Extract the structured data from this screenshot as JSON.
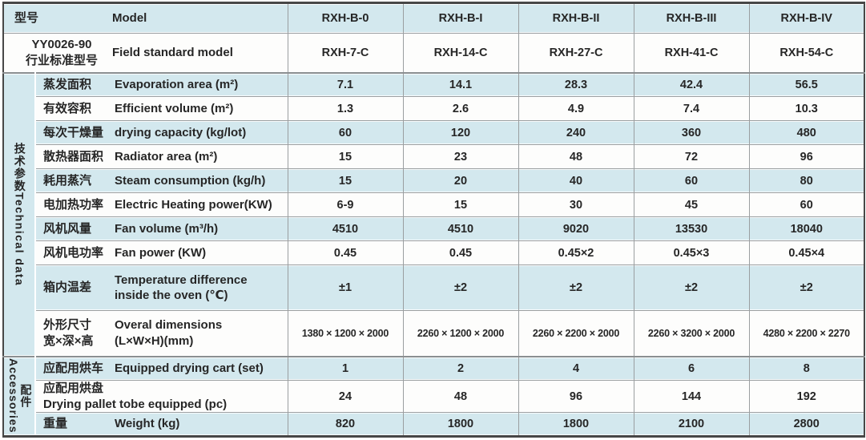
{
  "header": {
    "model_row": {
      "zh": "型号",
      "en": "Model",
      "values": [
        "RXH-B-0",
        "RXH-B-I",
        "RXH-B-II",
        "RXH-B-III",
        "RXH-B-IV"
      ]
    },
    "standard_row": {
      "zh": "YY0026-90\n行业标准型号",
      "en": "Field standard model",
      "values": [
        "RXH-7-C",
        "RXH-14-C",
        "RXH-27-C",
        "RXH-41-C",
        "RXH-54-C"
      ]
    }
  },
  "sections": [
    {
      "group": {
        "zh": "技术参数",
        "en": "Technical data"
      },
      "rows": [
        {
          "zh": "蒸发面积",
          "en": "Evaporation area (m²)",
          "values": [
            "7.1",
            "14.1",
            "28.3",
            "42.4",
            "56.5"
          ]
        },
        {
          "zh": "有效容积",
          "en": "Efficient volume (m²)",
          "values": [
            "1.3",
            "2.6",
            "4.9",
            "7.4",
            "10.3"
          ]
        },
        {
          "zh": "每次干燥量",
          "en": "drying capacity (kg/lot)",
          "values": [
            "60",
            "120",
            "240",
            "360",
            "480"
          ]
        },
        {
          "zh": "散热器面积",
          "en": "Radiator area (m²)",
          "values": [
            "15",
            "23",
            "48",
            "72",
            "96"
          ]
        },
        {
          "zh": "耗用蒸汽",
          "en": "Steam consumption (kg/h)",
          "values": [
            "15",
            "20",
            "40",
            "60",
            "80"
          ]
        },
        {
          "zh": "电加热功率",
          "en": "Electric Heating power(KW)",
          "values": [
            "6-9",
            "15",
            "30",
            "45",
            "60"
          ]
        },
        {
          "zh": "风机风量",
          "en": "Fan volume (m³/h)",
          "values": [
            "4510",
            "4510",
            "9020",
            "13530",
            "18040"
          ]
        },
        {
          "zh": "风机电功率",
          "en": "Fan power (KW)",
          "values": [
            "0.45",
            "0.45",
            "0.45×2",
            "0.45×3",
            "0.45×4"
          ]
        },
        {
          "zh": "箱内温差",
          "en": "Temperature difference\ninside the oven (℃)",
          "values": [
            "±1",
            "±2",
            "±2",
            "±2",
            "±2"
          ]
        },
        {
          "zh": "外形尺寸\n宽×深×高",
          "en": "Overal dimensions\n(L×W×H)(mm)",
          "values": [
            "1380 × 1200 × 2000",
            "2260 × 1200 × 2000",
            "2260 × 2200 × 2000",
            "2260 × 3200 × 2000",
            "4280 × 2200 × 2270"
          ]
        }
      ]
    },
    {
      "group": {
        "zh": "配件",
        "en": "Accessories"
      },
      "rows": [
        {
          "zh": "应配用烘车",
          "en": "Equipped drying cart (set)",
          "values": [
            "1",
            "2",
            "4",
            "6",
            "8"
          ]
        },
        {
          "zh": "应配用烘盘",
          "en": "Drying pallet tobe equipped (pc)",
          "values": [
            "24",
            "48",
            "96",
            "144",
            "192"
          ]
        },
        {
          "zh": "重量",
          "en": "Weight (kg)",
          "values": [
            "820",
            "1800",
            "1800",
            "2100",
            "2800"
          ]
        }
      ]
    }
  ],
  "colors": {
    "row_blue": "#d3e8ee",
    "row_white": "#fdfdfc",
    "outer_border": "#474747",
    "grid_line": "#9a9ea0",
    "text": "#262626"
  }
}
